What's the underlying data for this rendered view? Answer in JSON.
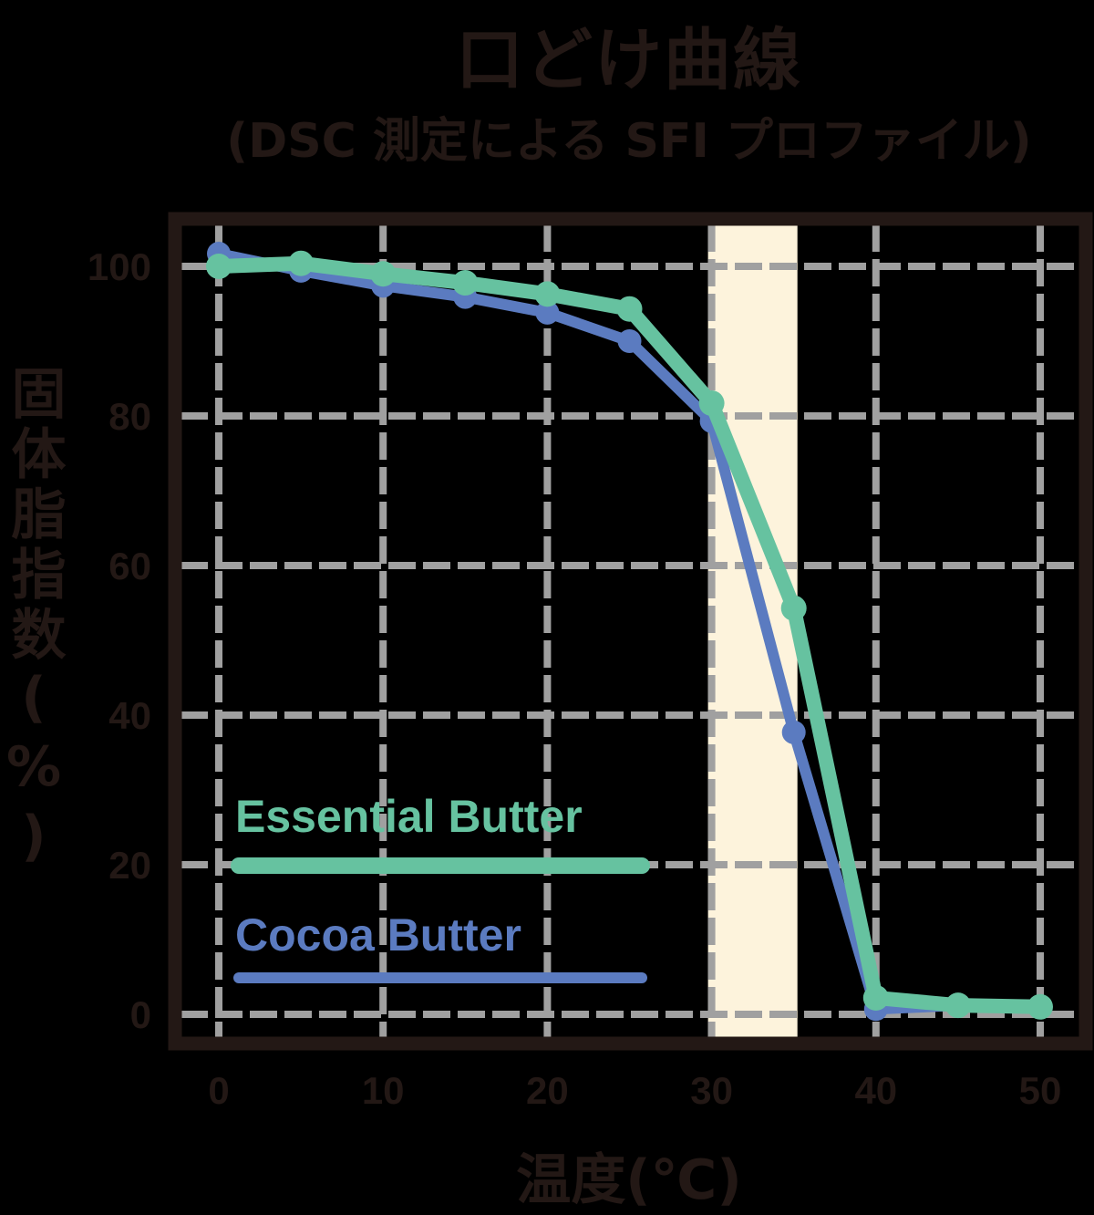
{
  "title": "口どけ曲線",
  "subtitle": "(DSC 測定による SFI プロファイル)",
  "colors": {
    "background": "#000000",
    "frame": "#231815",
    "grid": "#a0a0a0",
    "highlight_band": "#fdf3dc",
    "essential": "#66c2a0",
    "cocoa": "#5b7bc0",
    "text": "#231815"
  },
  "chart_data": {
    "type": "line",
    "title": "口どけ曲線",
    "subtitle": "(DSC 測定による SFI プロファイル)",
    "xlabel": "温度(℃)",
    "ylabel": "固体脂指数(%)",
    "xlim": [
      0,
      50
    ],
    "ylim": [
      0,
      100
    ],
    "xticks": [
      0,
      10,
      20,
      30,
      40,
      50
    ],
    "yticks": [
      0,
      20,
      40,
      60,
      80,
      100
    ],
    "grid": true,
    "grid_style": "dashed",
    "legend_position": "lower-left inside",
    "highlight_band": {
      "x_start": 30,
      "x_end": 35,
      "color": "#fdf3dc"
    },
    "x": [
      0,
      5,
      10,
      15,
      20,
      25,
      30,
      35,
      40,
      45,
      50
    ],
    "series": [
      {
        "name": "Essential Butter",
        "color": "#66c2a0",
        "values": [
          100,
          100.4,
          99,
          97.8,
          96.3,
          94.3,
          81.7,
          54.3,
          2.2,
          1.2,
          1.0
        ]
      },
      {
        "name": "Cocoa Butter",
        "color": "#5b7bc0",
        "values": [
          101.7,
          99.4,
          97.4,
          95.9,
          93.8,
          90,
          79.3,
          37.7,
          0.7,
          1.2,
          1.0
        ]
      }
    ]
  },
  "legend": {
    "items": [
      {
        "label": "Essential Butter",
        "color": "#66c2a0"
      },
      {
        "label": "Cocoa Butter",
        "color": "#5b7bc0"
      }
    ]
  }
}
